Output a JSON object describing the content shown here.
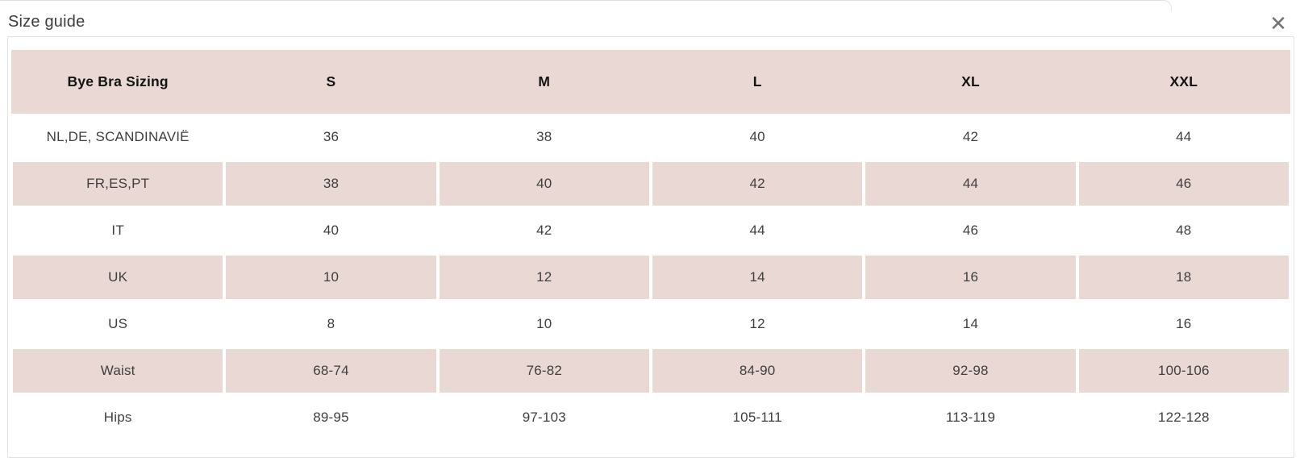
{
  "modal": {
    "title": "Size guide",
    "close_label": "✕"
  },
  "colors": {
    "accent_pink": "#e9d8d4",
    "panel_border": "#e3e3e3",
    "header_text": "#141414",
    "cell_text": "#3f3f3f",
    "title_text": "#3d3d3d",
    "close_icon": "#757575"
  },
  "chart_data": {
    "type": "table",
    "title": "Size guide",
    "categories": [
      "Bye Bra Sizing",
      "S",
      "M",
      "L",
      "XL",
      "XXL"
    ],
    "striped_rows": [
      "FR,ES,PT",
      "UK",
      "Waist"
    ]
  },
  "table": {
    "headers": [
      "Bye Bra Sizing",
      "S",
      "M",
      "L",
      "XL",
      "XXL"
    ],
    "rows": [
      {
        "label": "NL,DE, SCANDINAVIË",
        "values": [
          "36",
          "38",
          "40",
          "42",
          "44"
        ]
      },
      {
        "label": "FR,ES,PT",
        "values": [
          "38",
          "40",
          "42",
          "44",
          "46"
        ]
      },
      {
        "label": "IT",
        "values": [
          "40",
          "42",
          "44",
          "46",
          "48"
        ]
      },
      {
        "label": "UK",
        "values": [
          "10",
          "12",
          "14",
          "16",
          "18"
        ]
      },
      {
        "label": "US",
        "values": [
          "8",
          "10",
          "12",
          "14",
          "16"
        ]
      },
      {
        "label": "Waist",
        "values": [
          "68-74",
          "76-82",
          "84-90",
          "92-98",
          "100-106"
        ]
      },
      {
        "label": "Hips",
        "values": [
          "89-95",
          "97-103",
          "105-111",
          "113-119",
          "122-128"
        ]
      }
    ]
  }
}
